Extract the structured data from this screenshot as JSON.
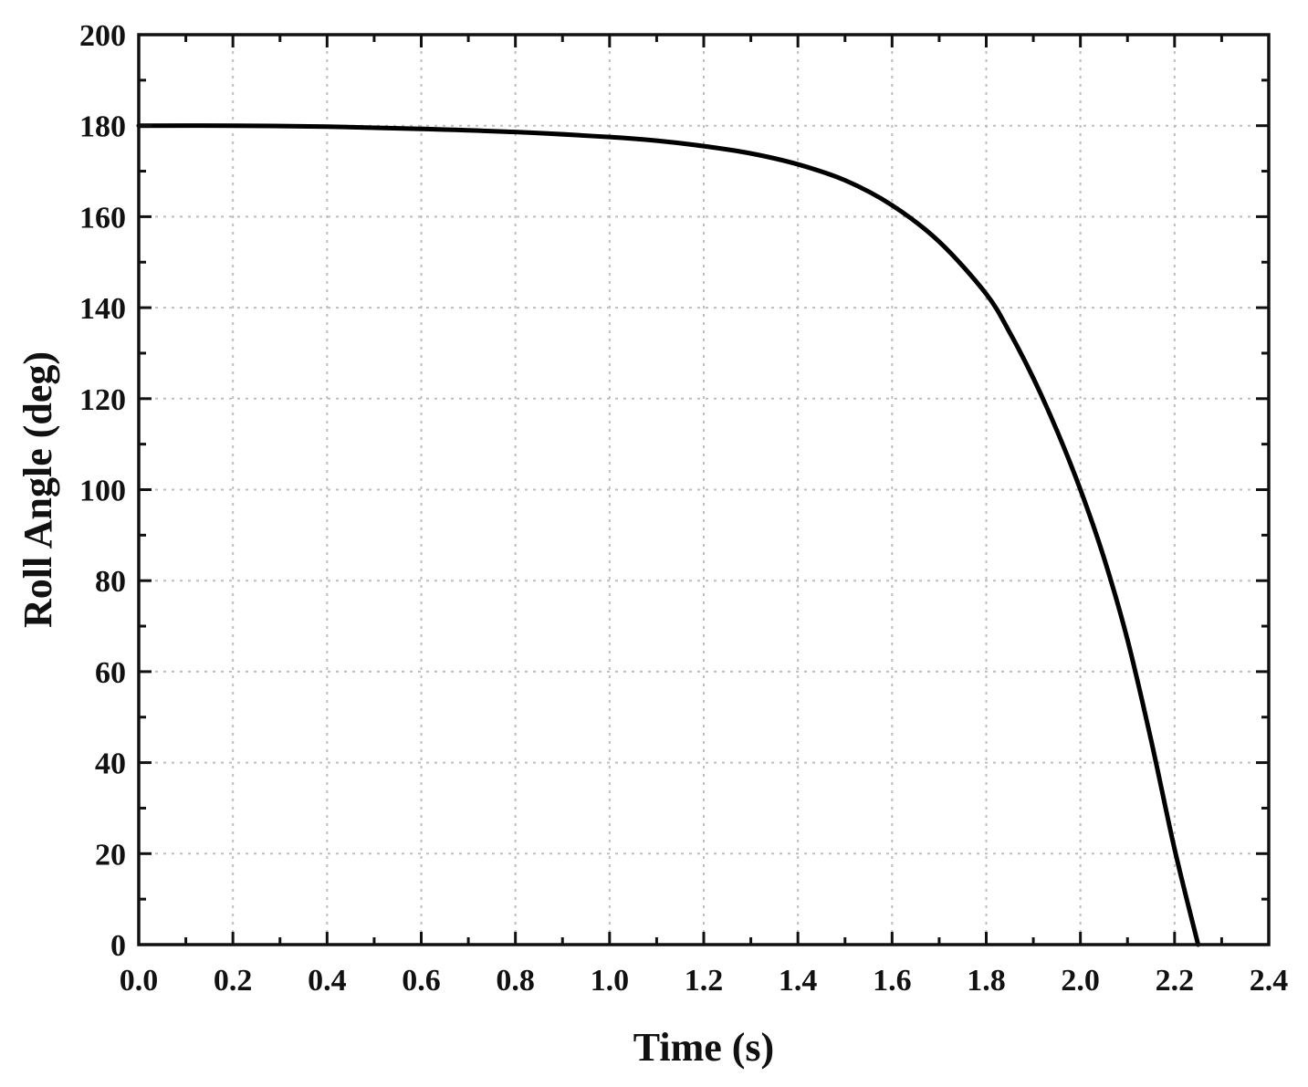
{
  "chart_data": {
    "type": "line",
    "title": "",
    "xlabel": "Time (s)",
    "ylabel": "Roll Angle (deg)",
    "xlim": [
      0.0,
      2.4
    ],
    "ylim": [
      0,
      200
    ],
    "xticks": [
      "0.0",
      "0.2",
      "0.4",
      "0.6",
      "0.8",
      "1.0",
      "1.2",
      "1.4",
      "1.6",
      "1.8",
      "2.0",
      "2.2",
      "2.4"
    ],
    "yticks": [
      "0",
      "20",
      "40",
      "60",
      "80",
      "100",
      "120",
      "140",
      "160",
      "180",
      "200"
    ],
    "grid": true,
    "legend": "none",
    "series": [
      {
        "color": "#000000",
        "x": [
          0.0,
          0.2,
          0.4,
          0.6,
          0.8,
          1.0,
          1.1,
          1.2,
          1.3,
          1.4,
          1.5,
          1.6,
          1.7,
          1.8,
          1.85,
          1.9,
          1.95,
          2.0,
          2.05,
          2.1,
          2.15,
          2.2,
          2.25
        ],
        "y": [
          180,
          180,
          179.8,
          179.3,
          178.6,
          177.5,
          176.7,
          175.5,
          173.9,
          171.5,
          168.0,
          162.5,
          154.5,
          143.0,
          134.5,
          124.5,
          113.0,
          100.0,
          85.0,
          67.0,
          45.0,
          21.0,
          0
        ]
      }
    ]
  }
}
